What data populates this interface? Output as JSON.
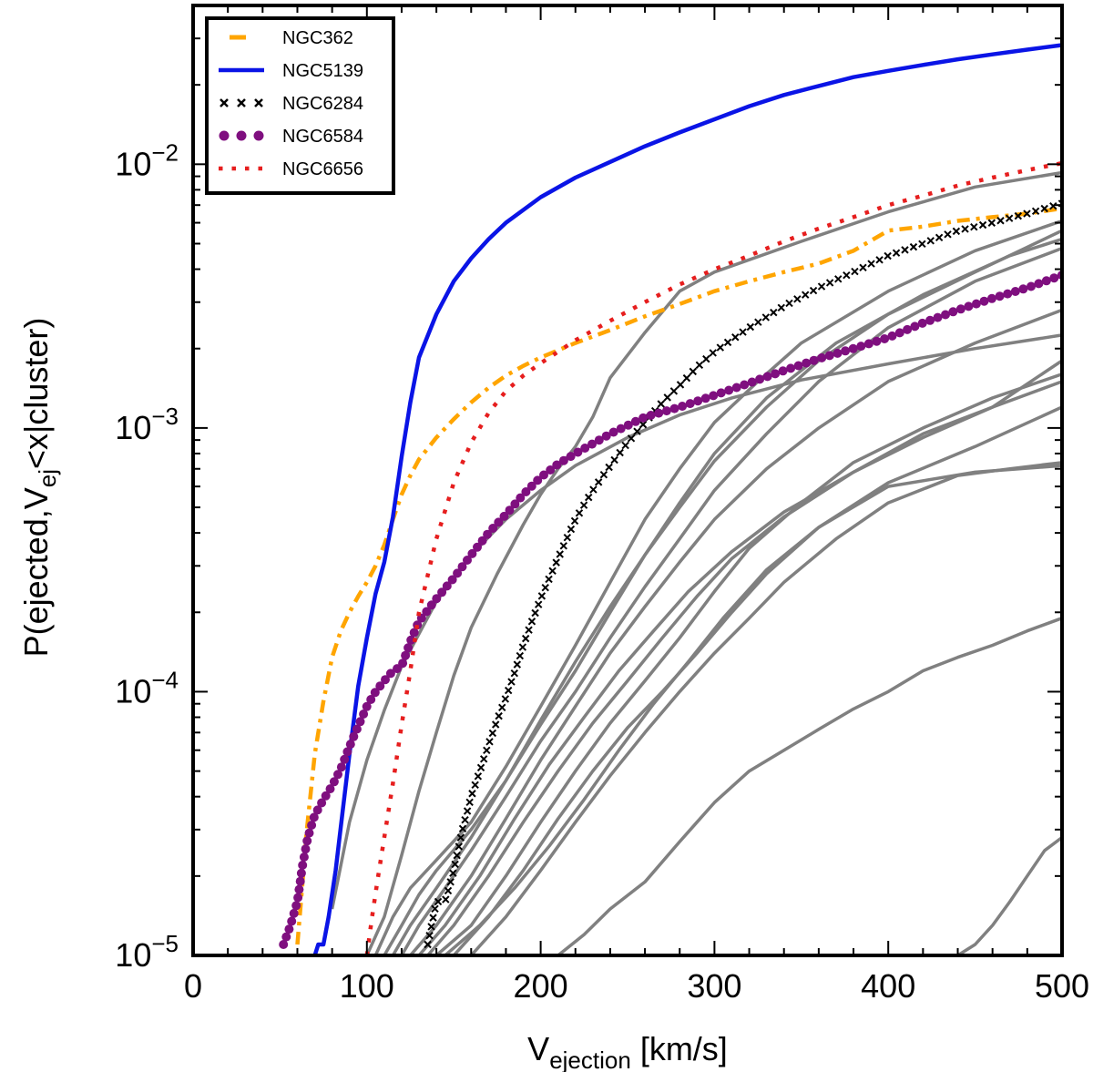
{
  "chart_data": {
    "type": "line",
    "xlabel": "V",
    "xlabel_sub": "ejection",
    "xlabel_suffix": " [km/s]",
    "ylabel_prefix": "P(ejected,V",
    "ylabel_sub": "ej",
    "ylabel_suffix": "<x|cluster)",
    "xlim": [
      0,
      500
    ],
    "ylim": [
      1e-05,
      0.04
    ],
    "yscale": "log",
    "x_major_ticks": [
      0,
      100,
      200,
      300,
      400,
      500
    ],
    "x_tick_labels": [
      "0",
      "100",
      "200",
      "300",
      "400",
      "500"
    ],
    "y_major_ticks": [
      0.0001,
      0.001,
      0.01
    ],
    "y_tick_labels": [
      {
        "base": "10",
        "exp": "−5"
      },
      {
        "base": "10",
        "exp": "−4"
      },
      {
        "base": "10",
        "exp": "−3"
      },
      {
        "base": "10",
        "exp": "−2"
      }
    ],
    "y_tick_values": [
      1e-05,
      0.0001,
      0.001,
      0.01
    ],
    "legend_position": "upper-left",
    "series": [
      {
        "name": "NGC362",
        "color": "#ffa500",
        "style": "dashdot",
        "legend": true,
        "x": [
          60,
          63,
          65,
          70,
          75,
          80,
          85,
          90,
          95,
          100,
          105,
          110,
          115,
          120,
          125,
          130,
          140,
          150,
          160,
          170,
          180,
          190,
          200,
          220,
          240,
          260,
          280,
          300,
          320,
          340,
          360,
          380,
          400,
          420,
          440,
          460,
          480,
          500
        ],
        "y": [
          1.1e-05,
          1.9e-05,
          2.8e-05,
          5.8e-05,
          9.2e-05,
          0.000135,
          0.00017,
          0.0002,
          0.00023,
          0.00026,
          0.0003,
          0.00036,
          0.00045,
          0.00056,
          0.00066,
          0.00076,
          0.00092,
          0.00108,
          0.00125,
          0.00142,
          0.00158,
          0.00172,
          0.00185,
          0.0021,
          0.00235,
          0.00265,
          0.00295,
          0.0033,
          0.0036,
          0.0039,
          0.0042,
          0.0047,
          0.0056,
          0.0058,
          0.0061,
          0.0063,
          0.0065,
          0.0068
        ]
      },
      {
        "name": "NGC5139",
        "color": "#0a14e6",
        "style": "solid",
        "legend": true,
        "x": [
          70,
          72,
          75,
          78,
          82,
          86,
          90,
          95,
          100,
          105,
          110,
          115,
          120,
          125,
          130,
          140,
          150,
          160,
          170,
          180,
          200,
          220,
          240,
          260,
          280,
          300,
          320,
          340,
          360,
          380,
          400,
          420,
          440,
          460,
          480,
          500
        ],
        "y": [
          1e-05,
          1.1e-05,
          1.1e-05,
          1.4e-05,
          2.1e-05,
          3.5e-05,
          5.8e-05,
          0.000105,
          0.00016,
          0.000235,
          0.00031,
          0.00046,
          0.00078,
          0.00125,
          0.00185,
          0.0027,
          0.0036,
          0.0044,
          0.0052,
          0.006,
          0.0075,
          0.0089,
          0.0102,
          0.0117,
          0.0132,
          0.0148,
          0.0166,
          0.0183,
          0.0198,
          0.0214,
          0.0226,
          0.0238,
          0.025,
          0.0261,
          0.0272,
          0.0283
        ]
      },
      {
        "name": "NGC6284",
        "color": "#000000",
        "style": "xmarker",
        "legend": true,
        "x": [
          135,
          140,
          145,
          150,
          155,
          160,
          165,
          170,
          175,
          180,
          185,
          190,
          195,
          200,
          205,
          210,
          215,
          220,
          230,
          240,
          250,
          260,
          270,
          280,
          290,
          300,
          320,
          340,
          360,
          380,
          400,
          420,
          440,
          460,
          480,
          500
        ],
        "y": [
          1.1e-05,
          1.6e-05,
          1.6e-05,
          2.1e-05,
          3e-05,
          4e-05,
          5e-05,
          6.3e-05,
          7.8e-05,
          9.5e-05,
          0.000118,
          0.00015,
          0.000185,
          0.000225,
          0.00027,
          0.00032,
          0.00038,
          0.00045,
          0.00058,
          0.00072,
          0.00088,
          0.00105,
          0.00125,
          0.00145,
          0.0017,
          0.00195,
          0.0024,
          0.0029,
          0.0034,
          0.0039,
          0.0045,
          0.005,
          0.0056,
          0.006,
          0.0065,
          0.0071
        ]
      },
      {
        "name": "NGC6584",
        "color": "#7f0f7f",
        "style": "dots",
        "legend": true,
        "x": [
          52,
          56,
          60,
          63,
          66,
          70,
          75,
          80,
          85,
          90,
          95,
          100,
          105,
          110,
          115,
          120,
          125,
          130,
          140,
          150,
          160,
          170,
          180,
          190,
          200,
          210,
          220,
          240,
          260,
          280,
          300,
          320,
          340,
          360,
          380,
          400,
          420,
          440,
          460,
          480,
          500
        ],
        "y": [
          1.1e-05,
          1.3e-05,
          1.6e-05,
          2.2e-05,
          2.8e-05,
          3.4e-05,
          3.9e-05,
          4.4e-05,
          5.1e-05,
          6.2e-05,
          7.4e-05,
          8.8e-05,
          0.0001,
          0.00011,
          0.00012,
          0.000125,
          0.000155,
          0.000185,
          0.000225,
          0.00027,
          0.00033,
          0.0004,
          0.00047,
          0.00056,
          0.00065,
          0.00073,
          0.0008,
          0.00095,
          0.0011,
          0.0012,
          0.00133,
          0.00148,
          0.00165,
          0.00183,
          0.002,
          0.0022,
          0.0025,
          0.0028,
          0.0031,
          0.0034,
          0.0038
        ]
      },
      {
        "name": "NGC6656",
        "color": "#e61e1e",
        "style": "dotted",
        "legend": true,
        "x": [
          100,
          103,
          106,
          110,
          115,
          120,
          125,
          130,
          140,
          150,
          160,
          170,
          180,
          190,
          200,
          220,
          240,
          260,
          280,
          300,
          320,
          340,
          360,
          380,
          400,
          420,
          440,
          460,
          480,
          500
        ],
        "y": [
          1e-05,
          1.4e-05,
          1.9e-05,
          2.8e-05,
          4.5e-05,
          7.5e-05,
          0.00012,
          0.0002,
          0.00038,
          0.00062,
          0.00088,
          0.00114,
          0.00138,
          0.00158,
          0.00176,
          0.00215,
          0.00255,
          0.003,
          0.0035,
          0.004,
          0.0045,
          0.0051,
          0.0057,
          0.0063,
          0.007,
          0.0076,
          0.0083,
          0.0089,
          0.0095,
          0.0101
        ]
      },
      {
        "name": "",
        "color": "#808080",
        "style": "solid",
        "legend": false,
        "x": [
          80,
          90,
          100,
          110,
          120,
          140,
          160,
          180,
          200,
          220,
          250,
          280,
          310,
          350,
          400,
          450,
          500
        ],
        "y": [
          1.5e-05,
          3.2e-05,
          5.5e-05,
          8.5e-05,
          0.000125,
          0.00022,
          0.00033,
          0.00045,
          0.00058,
          0.00072,
          0.00092,
          0.00112,
          0.0013,
          0.00152,
          0.00175,
          0.002,
          0.00225
        ]
      },
      {
        "name": "",
        "color": "#808080",
        "style": "solid",
        "legend": false,
        "x": [
          100,
          110,
          120,
          130,
          140,
          150,
          160,
          175,
          190,
          200,
          210,
          220,
          230,
          240,
          260,
          280,
          300,
          350,
          400,
          450,
          500
        ],
        "y": [
          1e-05,
          1.4e-05,
          2.4e-05,
          4.2e-05,
          7e-05,
          0.000115,
          0.000175,
          0.00028,
          0.00043,
          0.00056,
          0.0007,
          0.00085,
          0.0011,
          0.00155,
          0.0023,
          0.0033,
          0.0039,
          0.0051,
          0.0066,
          0.0082,
          0.0093
        ]
      },
      {
        "name": "",
        "color": "#808080",
        "style": "solid",
        "legend": false,
        "x": [
          105,
          115,
          125,
          140,
          160,
          180,
          200,
          220,
          240,
          260,
          280,
          300,
          325,
          350,
          400,
          450,
          500
        ],
        "y": [
          1e-05,
          1.4e-05,
          1.8e-05,
          2.3e-05,
          3.2e-05,
          5.2e-05,
          8.8e-05,
          0.00015,
          0.00026,
          0.00045,
          0.0007,
          0.00105,
          0.0015,
          0.0021,
          0.0033,
          0.0047,
          0.0061
        ]
      },
      {
        "name": "",
        "color": "#808080",
        "style": "solid",
        "legend": false,
        "x": [
          110,
          120,
          130,
          140,
          160,
          180,
          200,
          220,
          240,
          260,
          280,
          300,
          330,
          370,
          420,
          470,
          500
        ],
        "y": [
          1e-05,
          1.3e-05,
          1.7e-05,
          2.1e-05,
          3e-05,
          4.6e-05,
          7.5e-05,
          0.00012,
          0.0002,
          0.00033,
          0.00052,
          0.0008,
          0.0013,
          0.0021,
          0.0032,
          0.0045,
          0.0052
        ]
      },
      {
        "name": "",
        "color": "#808080",
        "style": "solid",
        "legend": false,
        "x": [
          115,
          125,
          140,
          160,
          180,
          200,
          220,
          240,
          260,
          280,
          300,
          330,
          360,
          400,
          450,
          500
        ],
        "y": [
          1e-05,
          1.3e-05,
          1.8e-05,
          2.8e-05,
          4.6e-05,
          7.8e-05,
          0.00013,
          0.00021,
          0.00033,
          0.0005,
          0.00075,
          0.0012,
          0.0018,
          0.0027,
          0.0039,
          0.0056
        ]
      },
      {
        "name": "",
        "color": "#808080",
        "style": "solid",
        "legend": false,
        "x": [
          120,
          130,
          145,
          160,
          180,
          200,
          220,
          240,
          260,
          280,
          300,
          330,
          360,
          400,
          450,
          500
        ],
        "y": [
          1e-05,
          1.3e-05,
          1.8e-05,
          2.5e-05,
          4e-05,
          6.5e-05,
          0.0001,
          0.00016,
          0.00025,
          0.00038,
          0.00058,
          0.00095,
          0.0015,
          0.0024,
          0.0036,
          0.0048
        ]
      },
      {
        "name": "",
        "color": "#808080",
        "style": "solid",
        "legend": false,
        "x": [
          125,
          140,
          160,
          180,
          200,
          220,
          240,
          260,
          280,
          300,
          330,
          360,
          400,
          450,
          500
        ],
        "y": [
          1e-05,
          1.3e-05,
          2e-05,
          3.3e-05,
          5.5e-05,
          8.8e-05,
          0.00014,
          0.00021,
          0.00031,
          0.00045,
          0.0007,
          0.001,
          0.0015,
          0.0021,
          0.0028
        ]
      },
      {
        "name": "",
        "color": "#808080",
        "style": "solid",
        "legend": false,
        "x": [
          135,
          150,
          170,
          190,
          210,
          230,
          250,
          270,
          290,
          310,
          340,
          380,
          420,
          460,
          500
        ],
        "y": [
          1e-05,
          1.3e-05,
          2e-05,
          3.2e-05,
          5e-05,
          7.6e-05,
          0.00011,
          0.00016,
          0.00023,
          0.00032,
          0.00046,
          0.00068,
          0.00095,
          0.0012,
          0.0015
        ]
      },
      {
        "name": "",
        "color": "#808080",
        "style": "solid",
        "legend": false,
        "x": [
          130,
          145,
          165,
          185,
          205,
          225,
          245,
          265,
          285,
          310,
          340,
          380,
          420,
          460,
          500
        ],
        "y": [
          1e-05,
          1.3e-05,
          2e-05,
          3.3e-05,
          5.3e-05,
          8e-05,
          0.00012,
          0.00017,
          0.00024,
          0.00034,
          0.00048,
          0.00068,
          0.00092,
          0.0012,
          0.0018
        ]
      },
      {
        "name": "",
        "color": "#808080",
        "style": "solid",
        "legend": false,
        "x": [
          140,
          160,
          180,
          200,
          220,
          240,
          260,
          280,
          300,
          320,
          350,
          380,
          420,
          460,
          500
        ],
        "y": [
          1e-05,
          1.3e-05,
          2e-05,
          3.2e-05,
          5e-05,
          7.6e-05,
          0.00011,
          0.00016,
          0.00024,
          0.00035,
          0.00052,
          0.00074,
          0.001,
          0.0013,
          0.0016
        ]
      },
      {
        "name": "",
        "color": "#808080",
        "style": "solid",
        "legend": false,
        "x": [
          150,
          170,
          190,
          210,
          230,
          250,
          270,
          290,
          310,
          330,
          360,
          400,
          450,
          500
        ],
        "y": [
          1e-05,
          1.4e-05,
          2.1e-05,
          3.3e-05,
          5e-05,
          7.3e-05,
          0.0001,
          0.00014,
          0.0002,
          0.00028,
          0.00042,
          0.00062,
          0.00085,
          0.0012
        ]
      },
      {
        "name": "",
        "color": "#808080",
        "style": "solid",
        "legend": false,
        "x": [
          145,
          165,
          185,
          205,
          225,
          245,
          265,
          285,
          305,
          330,
          360,
          400,
          450,
          500
        ],
        "y": [
          1e-05,
          1.3e-05,
          1.8e-05,
          2.6e-05,
          3.9e-05,
          6e-05,
          9e-05,
          0.00013,
          0.00019,
          0.00029,
          0.00042,
          0.0006,
          0.00068,
          0.00072
        ]
      },
      {
        "name": "",
        "color": "#808080",
        "style": "solid",
        "legend": false,
        "x": [
          160,
          180,
          200,
          220,
          240,
          260,
          280,
          300,
          320,
          340,
          370,
          400,
          440,
          470,
          500
        ],
        "y": [
          1e-05,
          1.4e-05,
          2.1e-05,
          3.2e-05,
          4.8e-05,
          7e-05,
          0.0001,
          0.00014,
          0.00019,
          0.00026,
          0.00038,
          0.00052,
          0.00066,
          0.0007,
          0.00074
        ]
      },
      {
        "name": "",
        "color": "#808080",
        "style": "solid",
        "legend": false,
        "x": [
          210,
          225,
          240,
          260,
          280,
          300,
          320,
          340,
          360,
          380,
          400,
          420,
          440,
          460,
          480,
          500
        ],
        "y": [
          1e-05,
          1.2e-05,
          1.5e-05,
          1.9e-05,
          2.7e-05,
          3.8e-05,
          5e-05,
          6e-05,
          7.2e-05,
          8.6e-05,
          0.0001,
          0.00012,
          0.000135,
          0.00015,
          0.00017,
          0.00019
        ]
      },
      {
        "name": "",
        "color": "#808080",
        "style": "solid",
        "legend": false,
        "x": [
          440,
          450,
          460,
          470,
          480,
          490,
          500
        ],
        "y": [
          1e-05,
          1.1e-05,
          1.3e-05,
          1.6e-05,
          2e-05,
          2.5e-05,
          2.8e-05
        ]
      }
    ]
  }
}
